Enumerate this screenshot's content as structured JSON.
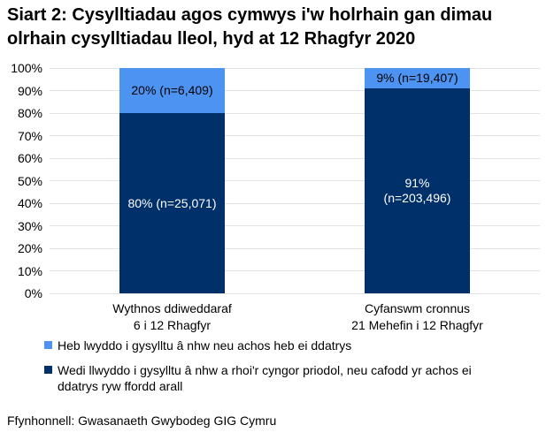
{
  "title": "Siart 2: Cysylltiadau agos cymwys i'w holrhain gan dimau olrhain cysylltiadau lleol, hyd at 12 Rhagfyr 2020",
  "source": "Ffynhonnell: Gwasanaeth Gwybodeg GIG Cymru",
  "colors": {
    "success_navy": "#003069",
    "fail_light_blue": "#4D94F2",
    "gridline": "#E3E3E3",
    "label_on_light": "#000000",
    "label_on_dark": "#FFFFFF"
  },
  "chart_data": {
    "type": "bar",
    "stacked": true,
    "grid": true,
    "legend_position": "bottom",
    "ylim": [
      0,
      100
    ],
    "y_ticks": [
      "100%",
      "90%",
      "80%",
      "70%",
      "60%",
      "50%",
      "40%",
      "30%",
      "20%",
      "10%",
      "0%"
    ],
    "categories": [
      [
        "Wythnos ddiweddaraf",
        "6 i 12 Rhagfyr"
      ],
      [
        "Cyfanswm cronnus",
        "21 Mehefin i 12 Rhagfyr"
      ]
    ],
    "series": [
      {
        "name": "Wedi llwyddo i gysylltu â nhw a rhoi'r cyngor priodol, neu cafodd yr achos ei ddatrys ryw ffordd arall",
        "color": "#003069",
        "text_color": "#FFFFFF",
        "values": [
          80,
          91
        ],
        "counts": [
          25071,
          203496
        ],
        "labels": [
          "80% (n=25,071)",
          [
            "91%",
            "(n=203,496)"
          ]
        ]
      },
      {
        "name": "Heb lwyddo i gysylltu â nhw neu achos heb ei ddatrys",
        "color": "#4D94F2",
        "text_color": "#000000",
        "values": [
          20,
          9
        ],
        "counts": [
          6409,
          19407
        ],
        "labels": [
          "20% (n=6,409)",
          "9% (n=19,407)"
        ]
      }
    ]
  },
  "legend": {
    "items": [
      {
        "label": "Heb lwyddo i gysylltu â nhw neu achos heb ei ddatrys",
        "color": "#4D94F2"
      },
      {
        "label": "Wedi llwyddo i gysylltu â nhw a rhoi'r cyngor priodol, neu cafodd yr achos ei ddatrys ryw ffordd arall",
        "color": "#003069"
      }
    ]
  }
}
